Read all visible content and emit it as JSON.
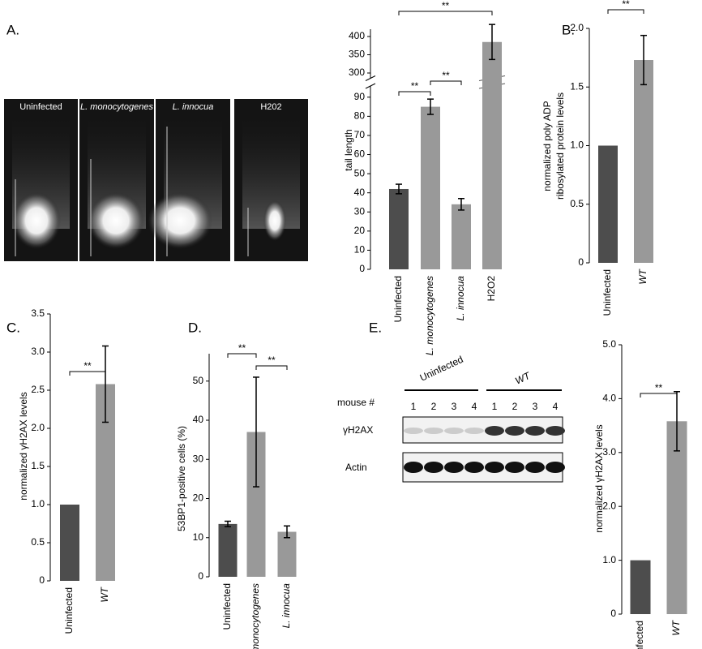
{
  "panel_labels": [
    "A.",
    "B.",
    "C.",
    "D.",
    "E."
  ],
  "comet_images": [
    "Uninfected",
    "L. monocytogenes",
    "L. innocua",
    "H202"
  ],
  "blot": {
    "groups": [
      "Uninfected",
      "WT"
    ],
    "lane_header": "mouse #",
    "lanes": [
      "1",
      "2",
      "3",
      "4",
      "1",
      "2",
      "3",
      "4"
    ],
    "rows": [
      "γH2AX",
      "Actin"
    ]
  },
  "chart_data": [
    {
      "type": "bar",
      "ylabel": [
        "tail length"
      ],
      "categories": [
        "Uninfected",
        "L. monocytogenes",
        "L. innocua",
        "H2O2"
      ],
      "values": [
        42,
        85,
        34,
        385
      ],
      "errors": [
        2.5,
        4,
        3,
        48
      ],
      "colors": [
        "#4d4d4d",
        "#999999",
        "#999999",
        "#999999"
      ],
      "ylim": [
        0,
        420
      ],
      "axis_break": [
        95,
        290
      ],
      "yticks": [
        0,
        10,
        20,
        30,
        40,
        50,
        60,
        70,
        80,
        90,
        300,
        350,
        400
      ],
      "annotations": [
        {
          "text": "**"
        },
        {
          "text": "**"
        },
        {
          "text": "**"
        }
      ]
    },
    {
      "type": "bar",
      "ylabel": [
        "normalized poly ADP",
        "ribosylated protein levels"
      ],
      "categories": [
        "Uninfected",
        "WT"
      ],
      "values": [
        1.0,
        1.73
      ],
      "errors": [
        null,
        0.21
      ],
      "colors": [
        "#4d4d4d",
        "#999999"
      ],
      "ylim": [
        0,
        2.0
      ],
      "yticks": [
        0,
        0.5,
        {
          "value": 1.0,
          "label": "1.0"
        },
        1.5,
        {
          "value": 2.0,
          "label": "2.0"
        }
      ],
      "annotations": [
        {
          "text": "**"
        }
      ]
    },
    {
      "type": "bar",
      "ylabel": [
        "normalized γH2AX levels"
      ],
      "categories": [
        "Uninfected",
        "WT"
      ],
      "values": [
        1.0,
        2.58
      ],
      "errors": [
        null,
        0.5
      ],
      "colors": [
        "#4d4d4d",
        "#999999"
      ],
      "ylim": [
        0,
        3.5
      ],
      "yticks": [
        0,
        0.5,
        {
          "value": 1.0,
          "label": "1.0"
        },
        1.5,
        {
          "value": 2.0,
          "label": "2.0"
        },
        2.5,
        {
          "value": 3.0,
          "label": "3.0"
        },
        3.5
      ],
      "annotations": [
        {
          "text": "**"
        }
      ]
    },
    {
      "type": "bar",
      "ylabel": [
        "53BP1-positive cells (%)"
      ],
      "categories": [
        "Uninfected",
        "L. monocytogenes",
        "L. innocua"
      ],
      "values": [
        13.5,
        37,
        11.5
      ],
      "errors": [
        0.7,
        14,
        1.5
      ],
      "colors": [
        "#4d4d4d",
        "#999999",
        "#999999"
      ],
      "ylim": [
        0,
        57
      ],
      "yticks": [
        0,
        10,
        20,
        30,
        40,
        50
      ],
      "annotations": [
        {
          "text": "**"
        },
        {
          "text": "**"
        }
      ]
    },
    {
      "type": "bar",
      "ylabel": [
        "normalized γH2AX levels"
      ],
      "categories": [
        "Uninfected",
        "WT"
      ],
      "values": [
        1.0,
        3.58
      ],
      "errors": [
        null,
        0.55
      ],
      "colors": [
        "#4d4d4d",
        "#999999"
      ],
      "ylim": [
        0,
        5.0
      ],
      "yticks": [
        0,
        {
          "value": 1.0,
          "label": "1.0"
        },
        {
          "value": 2.0,
          "label": "2.0"
        },
        {
          "value": 3.0,
          "label": "3.0"
        },
        {
          "value": 4.0,
          "label": "4.0"
        },
        {
          "value": 5.0,
          "label": "5.0"
        }
      ],
      "annotations": [
        {
          "text": "**"
        }
      ]
    }
  ]
}
